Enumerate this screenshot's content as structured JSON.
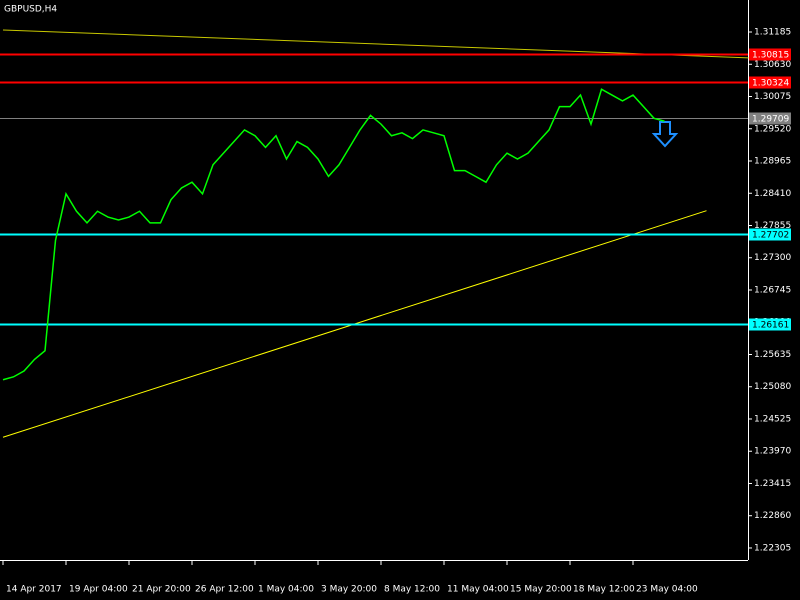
{
  "chart_data": {
    "type": "line",
    "title": "GBPUSD,H4",
    "categories": [
      "14 Apr 2017",
      null,
      null,
      null,
      null,
      null,
      "19 Apr 04:00",
      null,
      null,
      null,
      null,
      null,
      "21 Apr 20:00",
      null,
      null,
      null,
      null,
      null,
      "26 Apr 12:00",
      null,
      null,
      null,
      null,
      null,
      "1 May 04:00",
      null,
      null,
      null,
      null,
      null,
      "3 May 20:00",
      null,
      null,
      null,
      null,
      null,
      "8 May 12:00",
      null,
      null,
      null,
      null,
      null,
      "11 May 04:00",
      null,
      null,
      null,
      null,
      null,
      "15 May 20:00",
      null,
      null,
      null,
      null,
      null,
      "18 May 12:00",
      null,
      null,
      null,
      null,
      null,
      "23 May 04:00",
      null,
      null,
      null
    ],
    "series": [
      {
        "name": "GBPUSD",
        "color": "#00ff00",
        "values": [
          1.252,
          1.2525,
          1.2535,
          1.2555,
          1.257,
          1.276,
          1.284,
          1.281,
          1.279,
          1.281,
          1.28,
          1.2795,
          1.28,
          1.281,
          1.279,
          1.279,
          1.283,
          1.285,
          1.286,
          1.284,
          1.289,
          1.291,
          1.293,
          1.295,
          1.294,
          1.292,
          1.294,
          1.29,
          1.293,
          1.292,
          1.29,
          1.287,
          1.289,
          1.292,
          1.295,
          1.2975,
          1.296,
          1.294,
          1.2945,
          1.2935,
          1.295,
          1.2945,
          1.294,
          1.288,
          1.288,
          1.287,
          1.286,
          1.289,
          1.291,
          1.29,
          1.291,
          1.293,
          1.295,
          1.299,
          1.299,
          1.301,
          1.296,
          1.302,
          1.301,
          1.3,
          1.301,
          1.299,
          1.297,
          1.2965
        ]
      }
    ],
    "ylim": [
      1.22098,
      1.31736
    ],
    "yticks": [
      {
        "value": 1.31185,
        "label": "1.31185"
      },
      {
        "value": 1.3063,
        "label": "1.30630"
      },
      {
        "value": 1.30075,
        "label": "1.30075"
      },
      {
        "value": 1.2952,
        "label": "1.29520"
      },
      {
        "value": 1.28965,
        "label": "1.28965"
      },
      {
        "value": 1.2841,
        "label": "1.28410"
      },
      {
        "value": 1.27855,
        "label": "1.27855"
      },
      {
        "value": 1.273,
        "label": "1.27300"
      },
      {
        "value": 1.26745,
        "label": "1.26745"
      },
      {
        "value": 1.2619,
        "label": "1.26190"
      },
      {
        "value": 1.25635,
        "label": "1.25635"
      },
      {
        "value": 1.2508,
        "label": "1.25080"
      },
      {
        "value": 1.24525,
        "label": "1.24525"
      },
      {
        "value": 1.2397,
        "label": "1.23970"
      },
      {
        "value": 1.23415,
        "label": "1.23415"
      },
      {
        "value": 1.2286,
        "label": "1.22860"
      },
      {
        "value": 1.22305,
        "label": "1.22305"
      }
    ],
    "levels": [
      {
        "value": 1.30815,
        "color": "#ff0000"
      },
      {
        "value": 1.30324,
        "color": "#ff0000"
      },
      {
        "value": 1.29709,
        "color": "#808080"
      },
      {
        "value": 1.27702,
        "color": "#00ffff"
      },
      {
        "value": 1.26161,
        "color": "#00ffff"
      }
    ],
    "trendlines": [
      {
        "color": "#c8c800",
        "x": [
          0,
          71
        ],
        "values": [
          1.3122,
          1.3074
        ]
      },
      {
        "color": "#ffff00",
        "x": [
          0,
          67
        ],
        "values": [
          1.2421,
          1.2811
        ]
      }
    ]
  }
}
